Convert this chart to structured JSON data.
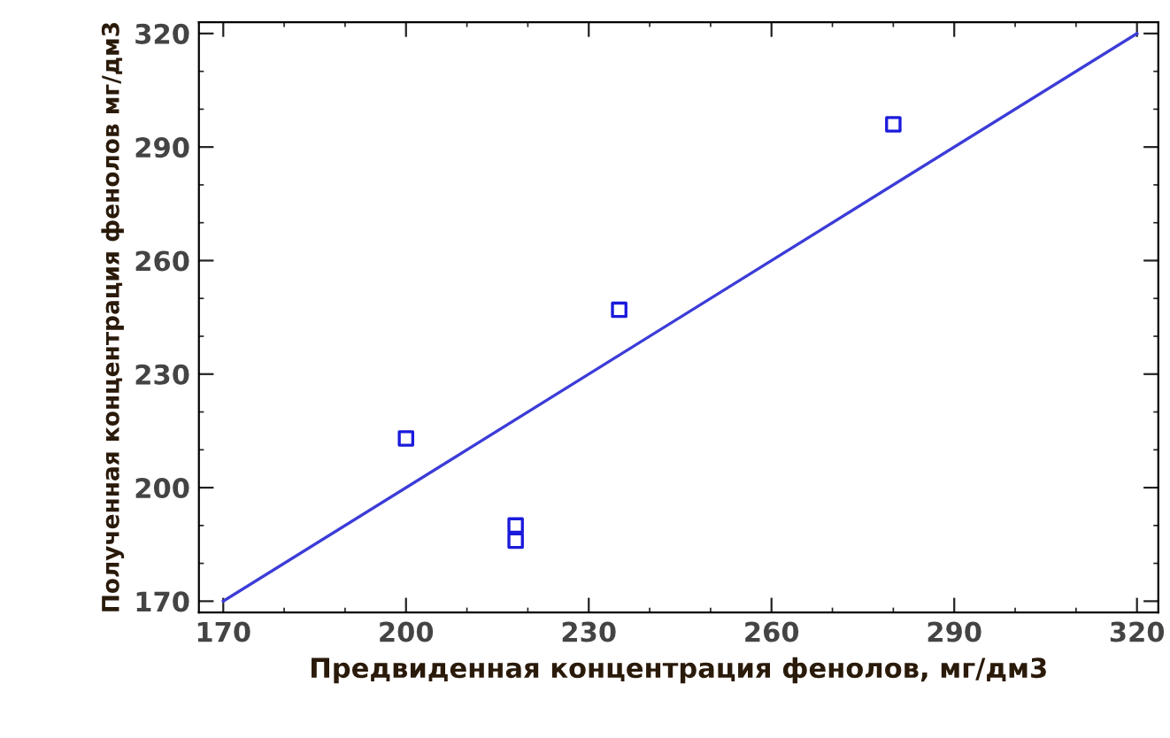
{
  "chart_data": {
    "type": "scatter",
    "xlabel": "Предвиденная концентрация фенолов, мг/дм3",
    "ylabel": "Полученная концентрация фенолов мг/дм3",
    "x": [
      200,
      218,
      218,
      235,
      280
    ],
    "series": [
      {
        "color": "#1a1adc",
        "marker": "square",
        "values": [
          213,
          190,
          186,
          247,
          296
        ]
      },
      {
        "type": "line",
        "color": "#3c3cd8",
        "marker": "none",
        "x": [
          170,
          320
        ],
        "values": [
          170,
          320
        ]
      }
    ],
    "xlim": [
      166,
      323.5
    ],
    "ylim": [
      167,
      323
    ],
    "xticks": [
      170,
      200,
      230,
      260,
      290,
      320
    ],
    "yticks": [
      170,
      200,
      230,
      260,
      290,
      320
    ],
    "grid": false,
    "legend": false
  }
}
